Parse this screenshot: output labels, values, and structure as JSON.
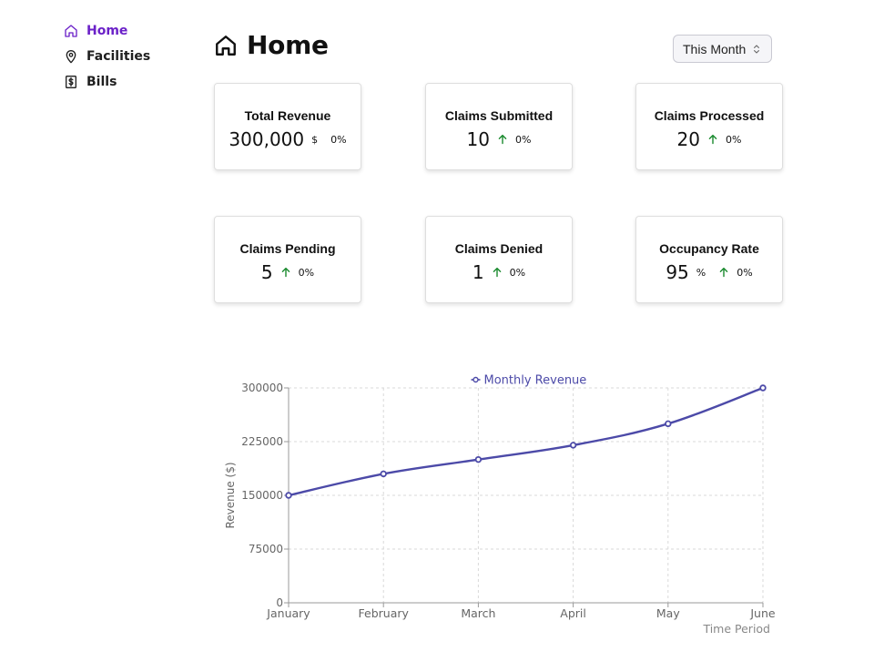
{
  "sidebar": {
    "items": [
      {
        "label": "Home",
        "icon": "home-icon",
        "active": true
      },
      {
        "label": "Facilities",
        "icon": "map-pin-icon",
        "active": false
      },
      {
        "label": "Bills",
        "icon": "dollar-bill-icon",
        "active": false
      }
    ]
  },
  "header": {
    "title": "Home",
    "icon": "home-icon"
  },
  "period_select": {
    "value": "This Month"
  },
  "cards": [
    {
      "title": "Total Revenue",
      "value": "300,000",
      "unit": "$",
      "change": "0%",
      "arrow": false
    },
    {
      "title": "Claims Submitted",
      "value": "10",
      "unit": "",
      "change": "0%",
      "arrow": true
    },
    {
      "title": "Claims Processed",
      "value": "20",
      "unit": "",
      "change": "0%",
      "arrow": true
    },
    {
      "title": "Claims Pending",
      "value": "5",
      "unit": "",
      "change": "0%",
      "arrow": true
    },
    {
      "title": "Claims Denied",
      "value": "1",
      "unit": "",
      "change": "0%",
      "arrow": true
    },
    {
      "title": "Occupancy Rate",
      "value": "95",
      "unit": "%",
      "change": "0%",
      "arrow": true
    }
  ],
  "colors": {
    "accent": "#6b21c8",
    "series": "#4c4aa8",
    "arrow_up": "#1a8a2e"
  },
  "chart_data": {
    "type": "line",
    "categories": [
      "January",
      "February",
      "March",
      "April",
      "May",
      "June"
    ],
    "series": [
      {
        "name": "Monthly Revenue",
        "values": [
          150000,
          180000,
          200000,
          220000,
          250000,
          300000
        ]
      }
    ],
    "ylabel": "Revenue ($)",
    "xlabel": "Time Period",
    "ylim": [
      0,
      300000
    ],
    "yticks": [
      0,
      75000,
      150000,
      225000,
      300000
    ],
    "grid": true,
    "legend": "top-center"
  }
}
